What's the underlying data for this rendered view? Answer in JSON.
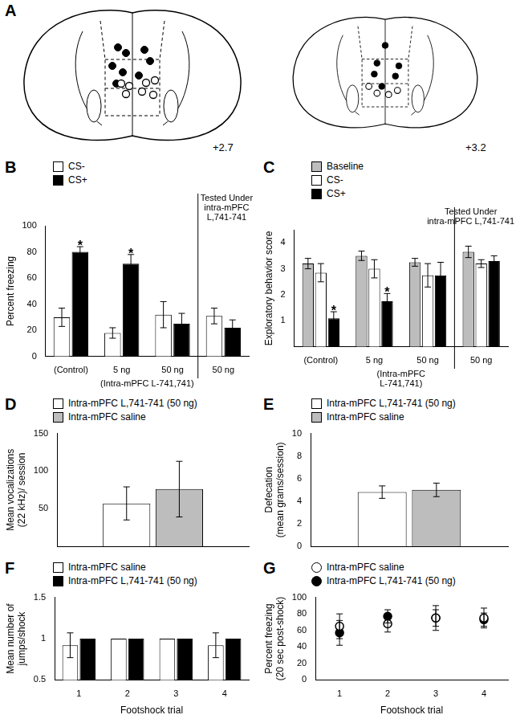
{
  "diagram": {
    "panel_label": "A",
    "sections": [
      {
        "label": "+2.7"
      },
      {
        "label": "+3.2"
      }
    ]
  },
  "chart_data": [
    {
      "panel_label": "B",
      "type": "bar",
      "y_label": "Percent freezing",
      "categories": [
        "(Control)",
        "5 ng",
        "50 ng",
        "50 ng"
      ],
      "series": [
        {
          "name": "CS-",
          "color": "#ffffff",
          "values": [
            30,
            18,
            32,
            31
          ],
          "errors": [
            7,
            4,
            10,
            6
          ]
        },
        {
          "name": "CS+",
          "color": "#000000",
          "values": [
            80,
            71,
            25,
            22
          ],
          "errors": [
            4,
            7,
            8,
            6
          ]
        }
      ],
      "ylim": [
        0,
        100
      ],
      "yticks": [
        0,
        20,
        40,
        60,
        80,
        100
      ],
      "grid": false,
      "legend": "top-left",
      "group_label": {
        "lines": [
          "(Intra-mPFC L-741,741)"
        ],
        "categories": [
          "5 ng",
          "50 ng"
        ]
      },
      "divider_text": [
        "Tested Under",
        "intra-mPFC",
        "L,741-741"
      ],
      "significance": [
        {
          "series": "CS+",
          "category": "(Control)",
          "text": "*"
        },
        {
          "series": "CS+",
          "category": "5 ng",
          "text": "*"
        }
      ]
    },
    {
      "panel_label": "C",
      "type": "bar",
      "y_label": "Exploratory behavior score",
      "categories": [
        "(Control)",
        "5 ng",
        "50 ng",
        "50 ng"
      ],
      "series": [
        {
          "name": "Baseline",
          "color": "#bdbdbd",
          "values": [
            3.2,
            3.5,
            3.25,
            3.65
          ],
          "errors": [
            0.2,
            0.18,
            0.15,
            0.22
          ]
        },
        {
          "name": "CS-",
          "color": "#ffffff",
          "values": [
            2.85,
            3.0,
            2.75,
            3.2
          ],
          "errors": [
            0.35,
            0.35,
            0.45,
            0.15
          ]
        },
        {
          "name": "CS+",
          "color": "#000000",
          "values": [
            1.1,
            1.75,
            2.75,
            3.3
          ],
          "errors": [
            0.25,
            0.3,
            0.5,
            0.2
          ]
        }
      ],
      "ylim": [
        0,
        4.5
      ],
      "yticks": [
        1,
        2,
        3,
        4
      ],
      "grid": false,
      "legend": "top-left",
      "group_label": {
        "lines": [
          "(Intra-mPFC",
          "L-741,741)"
        ],
        "categories": [
          "5 ng",
          "50 ng"
        ]
      },
      "divider_text": [
        "Tested Under",
        "intra-mPFC L,741-741"
      ],
      "significance": [
        {
          "series": "CS+",
          "category": "(Control)",
          "text": "*"
        },
        {
          "series": "CS+",
          "category": "5 ng",
          "text": "*"
        }
      ]
    },
    {
      "panel_label": "D",
      "type": "bar",
      "y_label": [
        "Mean vocalizations",
        "(22 kHz)/ session"
      ],
      "categories": [
        null
      ],
      "series": [
        {
          "name": "Intra-mPFC L,741-741 (50 ng)",
          "color": "#ffffff",
          "values": [
            57
          ],
          "errors": [
            22
          ]
        },
        {
          "name": "Intra-mPFC saline",
          "color": "#bdbdbd",
          "values": [
            76
          ],
          "errors": [
            37
          ]
        }
      ],
      "ylim": [
        0,
        150
      ],
      "yticks": [
        50,
        100,
        150
      ],
      "grid": false,
      "legend": "top-left",
      "tick_labels": "y"
    },
    {
      "panel_label": "E",
      "type": "bar",
      "y_label": [
        "Defecation",
        "(mean grams/session)"
      ],
      "categories": [
        null
      ],
      "series": [
        {
          "name": "Intra-mPFC L,741-741 (50 ng)",
          "color": "#ffffff",
          "values": [
            4.8
          ],
          "errors": [
            0.55
          ]
        },
        {
          "name": "Intra-mPFC saline",
          "color": "#bdbdbd",
          "values": [
            5.0
          ],
          "errors": [
            0.6
          ]
        }
      ],
      "ylim": [
        0,
        10
      ],
      "yticks": [
        0,
        2,
        4,
        6,
        8,
        10
      ],
      "grid": false,
      "legend": "top-left",
      "tick_labels": "y"
    },
    {
      "panel_label": "F",
      "type": "bar",
      "y_label": [
        "Mean number of",
        "jumps/shock"
      ],
      "x_label": "Footshock trial",
      "categories": [
        "1",
        "2",
        "3",
        "4"
      ],
      "series": [
        {
          "name": "Intra-mPFC saline",
          "color": "#ffffff",
          "values": [
            0.92,
            1,
            1,
            0.92
          ],
          "errors": [
            0.15,
            0,
            0,
            0.15
          ]
        },
        {
          "name": "Intra-mPFC L,741-741 (50 ng)",
          "color": "#000000",
          "values": [
            1,
            1,
            1,
            1
          ],
          "errors": [
            0,
            0,
            0,
            0
          ]
        }
      ],
      "ylim": [
        0.5,
        1.5
      ],
      "yticks": [
        0.5,
        1,
        1.5
      ],
      "grid": false,
      "legend": "top-left"
    },
    {
      "panel_label": "G",
      "type": "scatter",
      "y_label": [
        "Percent freezing",
        "(20 sec post-shock)"
      ],
      "x_label": "Footshock trial",
      "x": [
        1,
        2,
        3,
        4
      ],
      "series": [
        {
          "name": "Intra-mPFC saline",
          "color": "#ffffff",
          "marker": "circle",
          "values": [
            65,
            68,
            75,
            75
          ],
          "errors": [
            15,
            10,
            15,
            12
          ]
        },
        {
          "name": "Intra-mPFC L,741-741 (50 ng)",
          "color": "#000000",
          "marker": "circle",
          "values": [
            57,
            77,
            75,
            73
          ],
          "errors": [
            15,
            8,
            10,
            8
          ]
        }
      ],
      "xlim": [
        0.5,
        4.5
      ],
      "xticks": [
        1,
        2,
        3,
        4
      ],
      "ylim": [
        0,
        100
      ],
      "yticks": [
        0,
        20,
        40,
        60,
        80,
        100
      ],
      "grid": false,
      "legend": "top-left"
    }
  ]
}
